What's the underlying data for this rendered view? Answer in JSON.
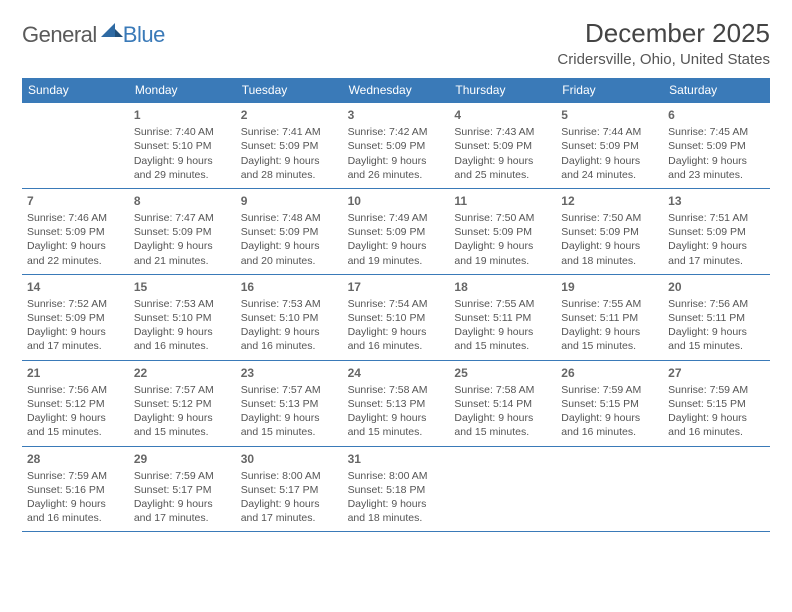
{
  "brand": {
    "general": "General",
    "blue": "Blue"
  },
  "title": "December 2025",
  "location": "Cridersville, Ohio, United States",
  "colors": {
    "header_bg": "#3a7ab8",
    "header_text": "#ffffff",
    "border": "#3a7ab8",
    "text": "#555555",
    "daynum": "#666666",
    "logo_gray": "#5a5a5a",
    "logo_blue": "#3a7ab8",
    "background": "#ffffff"
  },
  "typography": {
    "title_fontsize": 26,
    "location_fontsize": 15,
    "dayhead_fontsize": 12,
    "body_fontsize": 10.5,
    "daynum_fontsize": 12
  },
  "layout": {
    "columns": 7,
    "rows": 6
  },
  "daynames": [
    "Sunday",
    "Monday",
    "Tuesday",
    "Wednesday",
    "Thursday",
    "Friday",
    "Saturday"
  ],
  "weeks": [
    [
      null,
      {
        "d": "1",
        "sr": "Sunrise: 7:40 AM",
        "ss": "Sunset: 5:10 PM",
        "dl": "Daylight: 9 hours and 29 minutes."
      },
      {
        "d": "2",
        "sr": "Sunrise: 7:41 AM",
        "ss": "Sunset: 5:09 PM",
        "dl": "Daylight: 9 hours and 28 minutes."
      },
      {
        "d": "3",
        "sr": "Sunrise: 7:42 AM",
        "ss": "Sunset: 5:09 PM",
        "dl": "Daylight: 9 hours and 26 minutes."
      },
      {
        "d": "4",
        "sr": "Sunrise: 7:43 AM",
        "ss": "Sunset: 5:09 PM",
        "dl": "Daylight: 9 hours and 25 minutes."
      },
      {
        "d": "5",
        "sr": "Sunrise: 7:44 AM",
        "ss": "Sunset: 5:09 PM",
        "dl": "Daylight: 9 hours and 24 minutes."
      },
      {
        "d": "6",
        "sr": "Sunrise: 7:45 AM",
        "ss": "Sunset: 5:09 PM",
        "dl": "Daylight: 9 hours and 23 minutes."
      }
    ],
    [
      {
        "d": "7",
        "sr": "Sunrise: 7:46 AM",
        "ss": "Sunset: 5:09 PM",
        "dl": "Daylight: 9 hours and 22 minutes."
      },
      {
        "d": "8",
        "sr": "Sunrise: 7:47 AM",
        "ss": "Sunset: 5:09 PM",
        "dl": "Daylight: 9 hours and 21 minutes."
      },
      {
        "d": "9",
        "sr": "Sunrise: 7:48 AM",
        "ss": "Sunset: 5:09 PM",
        "dl": "Daylight: 9 hours and 20 minutes."
      },
      {
        "d": "10",
        "sr": "Sunrise: 7:49 AM",
        "ss": "Sunset: 5:09 PM",
        "dl": "Daylight: 9 hours and 19 minutes."
      },
      {
        "d": "11",
        "sr": "Sunrise: 7:50 AM",
        "ss": "Sunset: 5:09 PM",
        "dl": "Daylight: 9 hours and 19 minutes."
      },
      {
        "d": "12",
        "sr": "Sunrise: 7:50 AM",
        "ss": "Sunset: 5:09 PM",
        "dl": "Daylight: 9 hours and 18 minutes."
      },
      {
        "d": "13",
        "sr": "Sunrise: 7:51 AM",
        "ss": "Sunset: 5:09 PM",
        "dl": "Daylight: 9 hours and 17 minutes."
      }
    ],
    [
      {
        "d": "14",
        "sr": "Sunrise: 7:52 AM",
        "ss": "Sunset: 5:09 PM",
        "dl": "Daylight: 9 hours and 17 minutes."
      },
      {
        "d": "15",
        "sr": "Sunrise: 7:53 AM",
        "ss": "Sunset: 5:10 PM",
        "dl": "Daylight: 9 hours and 16 minutes."
      },
      {
        "d": "16",
        "sr": "Sunrise: 7:53 AM",
        "ss": "Sunset: 5:10 PM",
        "dl": "Daylight: 9 hours and 16 minutes."
      },
      {
        "d": "17",
        "sr": "Sunrise: 7:54 AM",
        "ss": "Sunset: 5:10 PM",
        "dl": "Daylight: 9 hours and 16 minutes."
      },
      {
        "d": "18",
        "sr": "Sunrise: 7:55 AM",
        "ss": "Sunset: 5:11 PM",
        "dl": "Daylight: 9 hours and 15 minutes."
      },
      {
        "d": "19",
        "sr": "Sunrise: 7:55 AM",
        "ss": "Sunset: 5:11 PM",
        "dl": "Daylight: 9 hours and 15 minutes."
      },
      {
        "d": "20",
        "sr": "Sunrise: 7:56 AM",
        "ss": "Sunset: 5:11 PM",
        "dl": "Daylight: 9 hours and 15 minutes."
      }
    ],
    [
      {
        "d": "21",
        "sr": "Sunrise: 7:56 AM",
        "ss": "Sunset: 5:12 PM",
        "dl": "Daylight: 9 hours and 15 minutes."
      },
      {
        "d": "22",
        "sr": "Sunrise: 7:57 AM",
        "ss": "Sunset: 5:12 PM",
        "dl": "Daylight: 9 hours and 15 minutes."
      },
      {
        "d": "23",
        "sr": "Sunrise: 7:57 AM",
        "ss": "Sunset: 5:13 PM",
        "dl": "Daylight: 9 hours and 15 minutes."
      },
      {
        "d": "24",
        "sr": "Sunrise: 7:58 AM",
        "ss": "Sunset: 5:13 PM",
        "dl": "Daylight: 9 hours and 15 minutes."
      },
      {
        "d": "25",
        "sr": "Sunrise: 7:58 AM",
        "ss": "Sunset: 5:14 PM",
        "dl": "Daylight: 9 hours and 15 minutes."
      },
      {
        "d": "26",
        "sr": "Sunrise: 7:59 AM",
        "ss": "Sunset: 5:15 PM",
        "dl": "Daylight: 9 hours and 16 minutes."
      },
      {
        "d": "27",
        "sr": "Sunrise: 7:59 AM",
        "ss": "Sunset: 5:15 PM",
        "dl": "Daylight: 9 hours and 16 minutes."
      }
    ],
    [
      {
        "d": "28",
        "sr": "Sunrise: 7:59 AM",
        "ss": "Sunset: 5:16 PM",
        "dl": "Daylight: 9 hours and 16 minutes."
      },
      {
        "d": "29",
        "sr": "Sunrise: 7:59 AM",
        "ss": "Sunset: 5:17 PM",
        "dl": "Daylight: 9 hours and 17 minutes."
      },
      {
        "d": "30",
        "sr": "Sunrise: 8:00 AM",
        "ss": "Sunset: 5:17 PM",
        "dl": "Daylight: 9 hours and 17 minutes."
      },
      {
        "d": "31",
        "sr": "Sunrise: 8:00 AM",
        "ss": "Sunset: 5:18 PM",
        "dl": "Daylight: 9 hours and 18 minutes."
      },
      null,
      null,
      null
    ]
  ]
}
